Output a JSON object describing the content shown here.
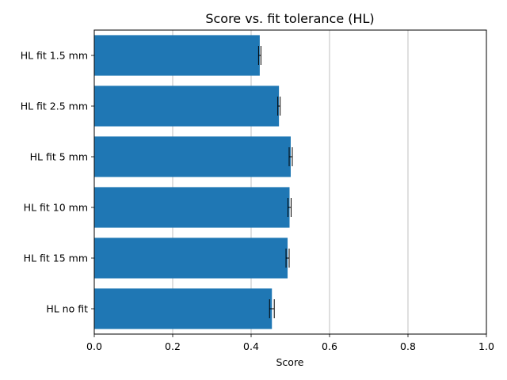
{
  "chart_data": {
    "type": "bar",
    "orientation": "horizontal",
    "title": "Score vs. fit tolerance (HL)",
    "xlabel": "Score",
    "ylabel": "",
    "xlim": [
      0,
      1
    ],
    "xticks": [
      "0.0",
      "0.2",
      "0.4",
      "0.6",
      "0.8",
      "1.0"
    ],
    "grid": "vertical",
    "bar_color": "#1f77b4",
    "categories": [
      "HL fit 1.5 mm",
      "HL fit 2.5 mm",
      "HL fit 5 mm",
      "HL fit 10 mm",
      "HL fit 15 mm",
      "HL no fit"
    ],
    "values": [
      0.422,
      0.471,
      0.501,
      0.498,
      0.493,
      0.453
    ],
    "errors": [
      0.003,
      0.003,
      0.004,
      0.004,
      0.004,
      0.006
    ]
  }
}
